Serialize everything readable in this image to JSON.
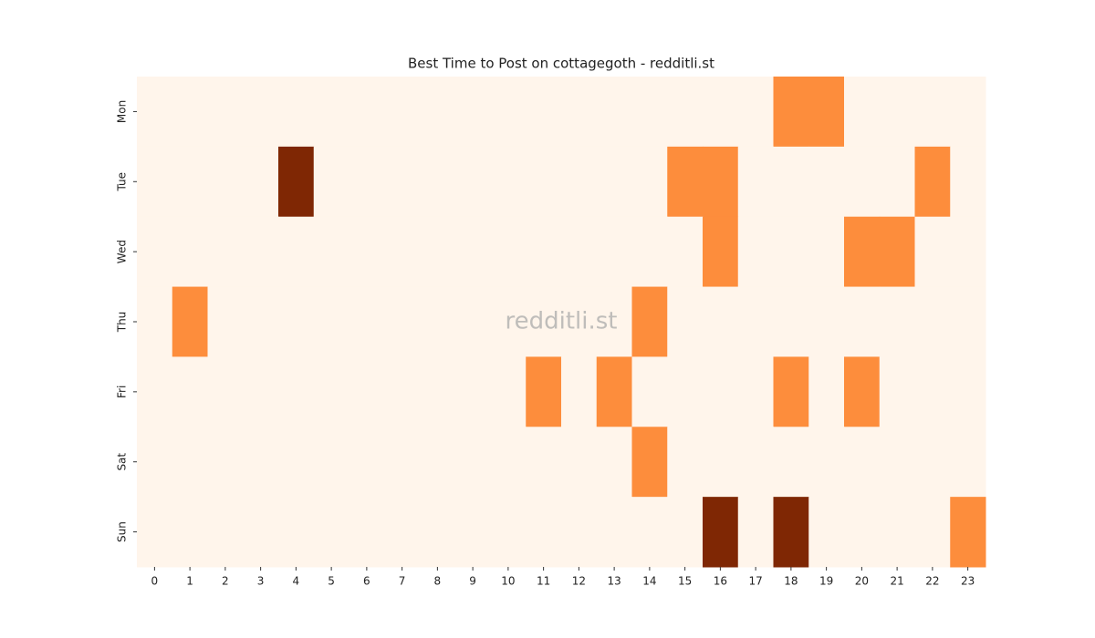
{
  "chart_data": {
    "type": "heatmap",
    "title": "Best Time to Post on cottagegoth - redditli.st",
    "watermark": "redditli.st",
    "x": [
      0,
      1,
      2,
      3,
      4,
      5,
      6,
      7,
      8,
      9,
      10,
      11,
      12,
      13,
      14,
      15,
      16,
      17,
      18,
      19,
      20,
      21,
      22,
      23
    ],
    "y": [
      "Mon",
      "Tue",
      "Wed",
      "Thu",
      "Fri",
      "Sat",
      "Sun"
    ],
    "values": [
      [
        0,
        0,
        0,
        0,
        0,
        0,
        0,
        0,
        0,
        0,
        0,
        0,
        0,
        0,
        0,
        0,
        0,
        0,
        1,
        1,
        0,
        0,
        0,
        0
      ],
      [
        0,
        0,
        0,
        0,
        2,
        0,
        0,
        0,
        0,
        0,
        0,
        0,
        0,
        0,
        0,
        1,
        1,
        0,
        0,
        0,
        0,
        0,
        1,
        0
      ],
      [
        0,
        0,
        0,
        0,
        0,
        0,
        0,
        0,
        0,
        0,
        0,
        0,
        0,
        0,
        0,
        0,
        1,
        0,
        0,
        0,
        1,
        1,
        0,
        0
      ],
      [
        0,
        1,
        0,
        0,
        0,
        0,
        0,
        0,
        0,
        0,
        0,
        0,
        0,
        0,
        1,
        0,
        0,
        0,
        0,
        0,
        0,
        0,
        0,
        0
      ],
      [
        0,
        0,
        0,
        0,
        0,
        0,
        0,
        0,
        0,
        0,
        0,
        1,
        0,
        1,
        0,
        0,
        0,
        0,
        1,
        0,
        1,
        0,
        0,
        0
      ],
      [
        0,
        0,
        0,
        0,
        0,
        0,
        0,
        0,
        0,
        0,
        0,
        0,
        0,
        0,
        1,
        0,
        0,
        0,
        0,
        0,
        0,
        0,
        0,
        0
      ],
      [
        0,
        0,
        0,
        0,
        0,
        0,
        0,
        0,
        0,
        0,
        0,
        0,
        0,
        0,
        0,
        0,
        2,
        0,
        2,
        0,
        0,
        0,
        0,
        1
      ]
    ],
    "vlim": [
      0,
      2
    ],
    "colormap": [
      "#fff5eb",
      "#fd8d3c",
      "#7f2704"
    ]
  }
}
